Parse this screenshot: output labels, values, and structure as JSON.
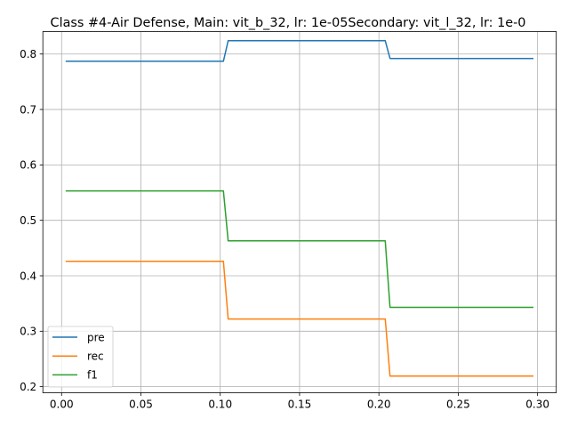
{
  "chart_data": {
    "type": "line",
    "title": "Class #4-Air Defense, Main: vit_b_32, lr: 1e-05Secondary: vit_l_32, lr: 1e-0",
    "xlabel": "",
    "ylabel": "",
    "xlim": [
      -0.0118,
      0.3118
    ],
    "ylim": [
      0.189,
      0.8405
    ],
    "xticks": [
      0.0,
      0.05,
      0.1,
      0.15,
      0.2,
      0.25,
      0.3
    ],
    "xtick_labels": [
      "0.00",
      "0.05",
      "0.10",
      "0.15",
      "0.20",
      "0.25",
      "0.30"
    ],
    "yticks": [
      0.2,
      0.3,
      0.4,
      0.5,
      0.6,
      0.7,
      0.8
    ],
    "ytick_labels": [
      "0.2",
      "0.3",
      "0.4",
      "0.5",
      "0.6",
      "0.7",
      "0.8"
    ],
    "grid": true,
    "legend": "lower-left",
    "series": [
      {
        "name": "pre",
        "color": "#1f77b4",
        "x": [
          0.003,
          0.102,
          0.105,
          0.204,
          0.207,
          0.297
        ],
        "y": [
          0.787,
          0.787,
          0.824,
          0.824,
          0.792,
          0.792
        ]
      },
      {
        "name": "rec",
        "color": "#ff7f0e",
        "x": [
          0.003,
          0.102,
          0.105,
          0.204,
          0.207,
          0.297
        ],
        "y": [
          0.426,
          0.426,
          0.322,
          0.322,
          0.219,
          0.219
        ]
      },
      {
        "name": "f1",
        "color": "#2ca02c",
        "x": [
          0.003,
          0.102,
          0.105,
          0.204,
          0.207,
          0.297
        ],
        "y": [
          0.553,
          0.553,
          0.463,
          0.463,
          0.343,
          0.343
        ]
      }
    ]
  }
}
